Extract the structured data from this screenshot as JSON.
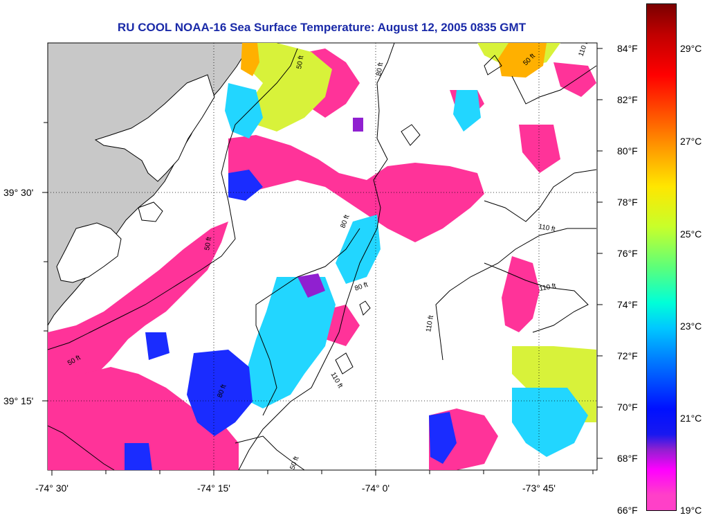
{
  "title": "RU COOL  NOAA-16  Sea Surface Temperature:  August 12, 2005 0835 GMT",
  "axes": {
    "x_ticks": [
      "-74° 30'",
      "-74° 15'",
      "-74° 0'",
      "-73° 45'"
    ],
    "y_ticks": [
      "39° 30'",
      "39° 15'"
    ]
  },
  "colorbar": {
    "fahrenheit_labels": [
      "84°F",
      "82°F",
      "80°F",
      "78°F",
      "76°F",
      "74°F",
      "72°F",
      "70°F",
      "68°F",
      "66°F"
    ],
    "celsius_labels": [
      "29°C",
      "27°C",
      "25°C",
      "23°C",
      "21°C",
      "19°C"
    ],
    "range_f": [
      66,
      86
    ],
    "range_c": [
      19,
      30
    ]
  },
  "contours": {
    "labels": [
      "50 ft",
      "80 ft",
      "50 ft",
      "110 ft",
      "50 ft",
      "80 ft",
      "80 ft",
      "110 ft",
      "110 ft",
      "110 ft",
      "50 ft",
      "110 ft",
      "80 ft",
      "50 ft"
    ]
  },
  "colors": {
    "title": "#1a2aa8",
    "land": "#c8c8c8",
    "sst_pink": "#ff3399",
    "sst_cyan": "#22d6ff",
    "sst_yellow": "#d8f23a",
    "sst_blue": "#1a2cff"
  }
}
